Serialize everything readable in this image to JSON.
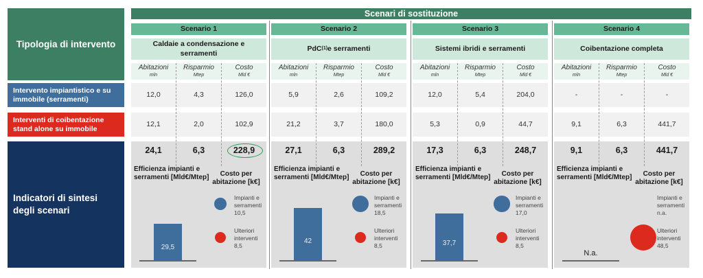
{
  "left": {
    "tipologia": "Tipologia di intervento",
    "row_a": "Intervento impiantistico e su immobile (serramenti)",
    "row_b": "Interventi di coibentazione stand alone su immobile",
    "sintesi": "Indicatori di sintesi degli scenari"
  },
  "header": "Scenari di sostituzione",
  "colors": {
    "dark_green": "#3d7f62",
    "mid_green": "#67b896",
    "blue": "#3f6e9c",
    "red": "#dc2a1f",
    "navy": "#14335f"
  },
  "col_headers": [
    {
      "label": "Abitazioni",
      "unit": "mln"
    },
    {
      "label": "Risparmio",
      "unit": "Mtep"
    },
    {
      "label": "Costo",
      "unit": "Mld €"
    }
  ],
  "indicator_labels": {
    "efficiency": "Efficienza impianti e serramenti [Mld€/Mtep]",
    "cost": "Costo per abitazione [k€]",
    "impianti": "Impianti e serramenti",
    "ulteriori": "Ulteriori interventi"
  },
  "scenarios": [
    {
      "title": "Scenario 1",
      "subtitle": "Caldaie a condensazione e serramenti",
      "row_a": [
        "12,0",
        "4,3",
        "126,0"
      ],
      "row_b": [
        "12,1",
        "2,0",
        "102,9"
      ],
      "totals": [
        "24,1",
        "6,3",
        "228,9"
      ],
      "highlight_total": true,
      "efficiency": "29,5",
      "efficiency_value": 29.5,
      "cost_impianti": "10,5",
      "cost_impianti_value": 10.5,
      "cost_ulteriori": "8,5",
      "cost_ulteriori_value": 8.5
    },
    {
      "title": "Scenario 2",
      "subtitle": "PdC",
      "subtitle_sup": "(1)",
      "subtitle_rest": " e serramenti",
      "row_a": [
        "5,9",
        "2,6",
        "109,2"
      ],
      "row_b": [
        "21,2",
        "3,7",
        "180,0"
      ],
      "totals": [
        "27,1",
        "6,3",
        "289,2"
      ],
      "efficiency": "42",
      "efficiency_value": 42,
      "cost_impianti": "18,5",
      "cost_impianti_value": 18.5,
      "cost_ulteriori": "8,5",
      "cost_ulteriori_value": 8.5
    },
    {
      "title": "Scenario 3",
      "subtitle": "Sistemi ibridi e serramenti",
      "row_a": [
        "12,0",
        "5,4",
        "204,0"
      ],
      "row_b": [
        "5,3",
        "0,9",
        "44,7"
      ],
      "totals": [
        "17,3",
        "6,3",
        "248,7"
      ],
      "efficiency": "37,7",
      "efficiency_value": 37.7,
      "cost_impianti": "17,0",
      "cost_impianti_value": 17.0,
      "cost_ulteriori": "8,5",
      "cost_ulteriori_value": 8.5
    },
    {
      "title": "Scenario 4",
      "subtitle": "Coibentazione completa",
      "row_a": [
        "-",
        "-",
        "-"
      ],
      "row_b": [
        "9,1",
        "6,3",
        "441,7"
      ],
      "totals": [
        "9,1",
        "6,3",
        "441,7"
      ],
      "efficiency": "N.a.",
      "efficiency_value": null,
      "cost_impianti": "n.a.",
      "cost_impianti_value": null,
      "cost_ulteriori": "48,5",
      "cost_ulteriori_value": 48.5
    }
  ]
}
